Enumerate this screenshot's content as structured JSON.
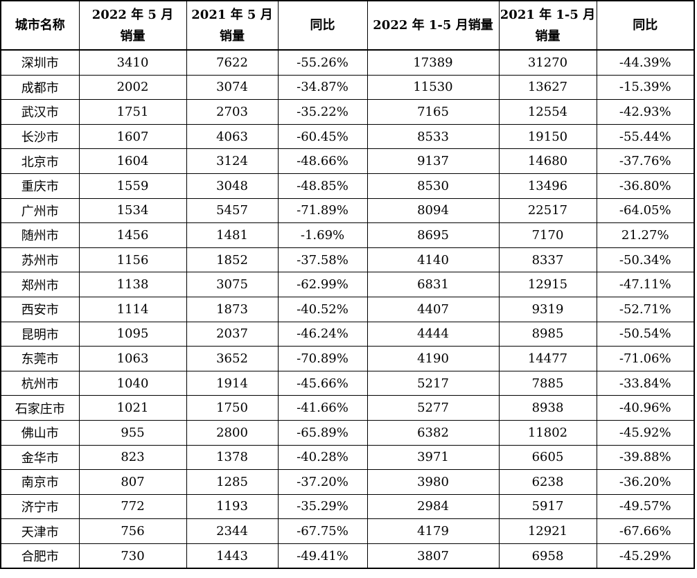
{
  "header": {
    "city": "城市名称",
    "may2022_line1": "2022 年 5 月",
    "may2022_line2": "销量",
    "may2021_line1": "2021 年 5 月",
    "may2021_line2": "销量",
    "yoy1": "同比",
    "ytd2022": "2022 年 1-5 月销量",
    "ytd2021_line1": "2021 年 1-5 月",
    "ytd2021_line2": "销量",
    "yoy2": "同比"
  },
  "rows": [
    [
      "深圳市",
      "3410",
      "7622",
      "-55.26%",
      "17389",
      "31270",
      "-44.39%"
    ],
    [
      "成都市",
      "2002",
      "3074",
      "-34.87%",
      "11530",
      "13627",
      "-15.39%"
    ],
    [
      "武汉市",
      "1751",
      "2703",
      "-35.22%",
      "7165",
      "12554",
      "-42.93%"
    ],
    [
      "长沙市",
      "1607",
      "4063",
      "-60.45%",
      "8533",
      "19150",
      "-55.44%"
    ],
    [
      "北京市",
      "1604",
      "3124",
      "-48.66%",
      "9137",
      "14680",
      "-37.76%"
    ],
    [
      "重庆市",
      "1559",
      "3048",
      "-48.85%",
      "8530",
      "13496",
      "-36.80%"
    ],
    [
      "广州市",
      "1534",
      "5457",
      "-71.89%",
      "8094",
      "22517",
      "-64.05%"
    ],
    [
      "随州市",
      "1456",
      "1481",
      "-1.69%",
      "8695",
      "7170",
      "21.27%"
    ],
    [
      "苏州市",
      "1156",
      "1852",
      "-37.58%",
      "4140",
      "8337",
      "-50.34%"
    ],
    [
      "郑州市",
      "1138",
      "3075",
      "-62.99%",
      "6831",
      "12915",
      "-47.11%"
    ],
    [
      "西安市",
      "1114",
      "1873",
      "-40.52%",
      "4407",
      "9319",
      "-52.71%"
    ],
    [
      "昆明市",
      "1095",
      "2037",
      "-46.24%",
      "4444",
      "8985",
      "-50.54%"
    ],
    [
      "东莞市",
      "1063",
      "3652",
      "-70.89%",
      "4190",
      "14477",
      "-71.06%"
    ],
    [
      "杭州市",
      "1040",
      "1914",
      "-45.66%",
      "5217",
      "7885",
      "-33.84%"
    ],
    [
      "石家庄市",
      "1021",
      "1750",
      "-41.66%",
      "5277",
      "8938",
      "-40.96%"
    ],
    [
      "佛山市",
      "955",
      "2800",
      "-65.89%",
      "6382",
      "11802",
      "-45.92%"
    ],
    [
      "金华市",
      "823",
      "1378",
      "-40.28%",
      "3971",
      "6605",
      "-39.88%"
    ],
    [
      "南京市",
      "807",
      "1285",
      "-37.20%",
      "3980",
      "6238",
      "-36.20%"
    ],
    [
      "济宁市",
      "772",
      "1193",
      "-35.29%",
      "2984",
      "5917",
      "-49.57%"
    ],
    [
      "天津市",
      "756",
      "2344",
      "-67.75%",
      "4179",
      "12921",
      "-67.66%"
    ],
    [
      "合肥市",
      "730",
      "1443",
      "-49.41%",
      "3807",
      "6958",
      "-45.29%"
    ]
  ]
}
